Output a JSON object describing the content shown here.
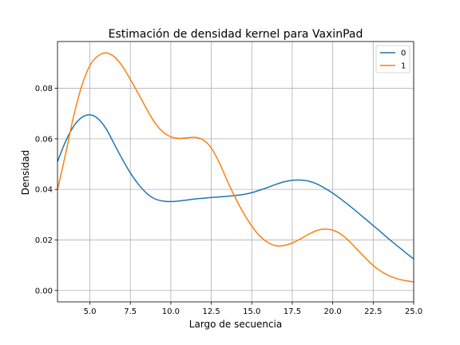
{
  "chart_data": {
    "type": "line",
    "title": "Estimación de densidad kernel para VaxinPad",
    "xlabel": "Largo de secuencia",
    "ylabel": "Densidad",
    "xlim": [
      3.0,
      25.0
    ],
    "ylim": [
      -0.0045,
      0.0985
    ],
    "xticks": [
      5.0,
      7.5,
      10.0,
      12.5,
      15.0,
      17.5,
      20.0,
      22.5,
      25.0
    ],
    "xtick_labels": [
      "5.0",
      "7.5",
      "10.0",
      "12.5",
      "15.0",
      "17.5",
      "20.0",
      "22.5",
      "25.0"
    ],
    "yticks": [
      0.0,
      0.02,
      0.04,
      0.06,
      0.08
    ],
    "ytick_labels": [
      "0.00",
      "0.02",
      "0.04",
      "0.06",
      "0.08"
    ],
    "grid": true,
    "legend_position": "top-right",
    "series": [
      {
        "name": "0",
        "color": "#1f77b4",
        "x": [
          3.0,
          3.5,
          4.0,
          4.5,
          5.0,
          5.5,
          6.0,
          6.5,
          7.0,
          7.5,
          8.0,
          8.5,
          9.0,
          9.5,
          10.0,
          10.5,
          11.0,
          11.5,
          12.0,
          12.5,
          13.0,
          13.5,
          14.0,
          14.5,
          15.0,
          15.5,
          16.0,
          16.5,
          17.0,
          17.5,
          18.0,
          18.5,
          19.0,
          19.5,
          20.0,
          20.5,
          21.0,
          21.5,
          22.0,
          22.5,
          23.0,
          23.5,
          24.0,
          24.5,
          25.0
        ],
        "y": [
          0.051,
          0.059,
          0.065,
          0.0685,
          0.0695,
          0.068,
          0.064,
          0.058,
          0.052,
          0.0465,
          0.042,
          0.0385,
          0.0363,
          0.0354,
          0.0352,
          0.0354,
          0.0358,
          0.0362,
          0.0365,
          0.0368,
          0.037,
          0.0373,
          0.0376,
          0.038,
          0.0387,
          0.0397,
          0.0408,
          0.042,
          0.043,
          0.0436,
          0.0437,
          0.0433,
          0.0422,
          0.0405,
          0.0385,
          0.0362,
          0.0337,
          0.0311,
          0.0284,
          0.0257,
          0.023,
          0.0202,
          0.0176,
          0.015,
          0.0125
        ]
      },
      {
        "name": "1",
        "color": "#ff7f0e",
        "x": [
          3.0,
          3.5,
          4.0,
          4.5,
          5.0,
          5.5,
          6.0,
          6.5,
          7.0,
          7.5,
          8.0,
          8.5,
          9.0,
          9.5,
          10.0,
          10.5,
          11.0,
          11.5,
          12.0,
          12.5,
          13.0,
          13.5,
          14.0,
          14.5,
          15.0,
          15.5,
          16.0,
          16.5,
          17.0,
          17.5,
          18.0,
          18.5,
          19.0,
          19.5,
          20.0,
          20.5,
          21.0,
          21.5,
          22.0,
          22.5,
          23.0,
          23.5,
          24.0,
          24.5,
          25.0
        ],
        "y": [
          0.04,
          0.054,
          0.069,
          0.081,
          0.089,
          0.0928,
          0.094,
          0.0925,
          0.0888,
          0.0835,
          0.0778,
          0.0719,
          0.0665,
          0.0628,
          0.0608,
          0.0602,
          0.0604,
          0.0606,
          0.0596,
          0.0564,
          0.0505,
          0.0432,
          0.0365,
          0.0305,
          0.0255,
          0.0215,
          0.019,
          0.0177,
          0.0178,
          0.0188,
          0.0204,
          0.0222,
          0.0237,
          0.0243,
          0.0239,
          0.0223,
          0.0196,
          0.0163,
          0.013,
          0.0099,
          0.0075,
          0.0058,
          0.0046,
          0.0039,
          0.0034
        ]
      }
    ]
  }
}
